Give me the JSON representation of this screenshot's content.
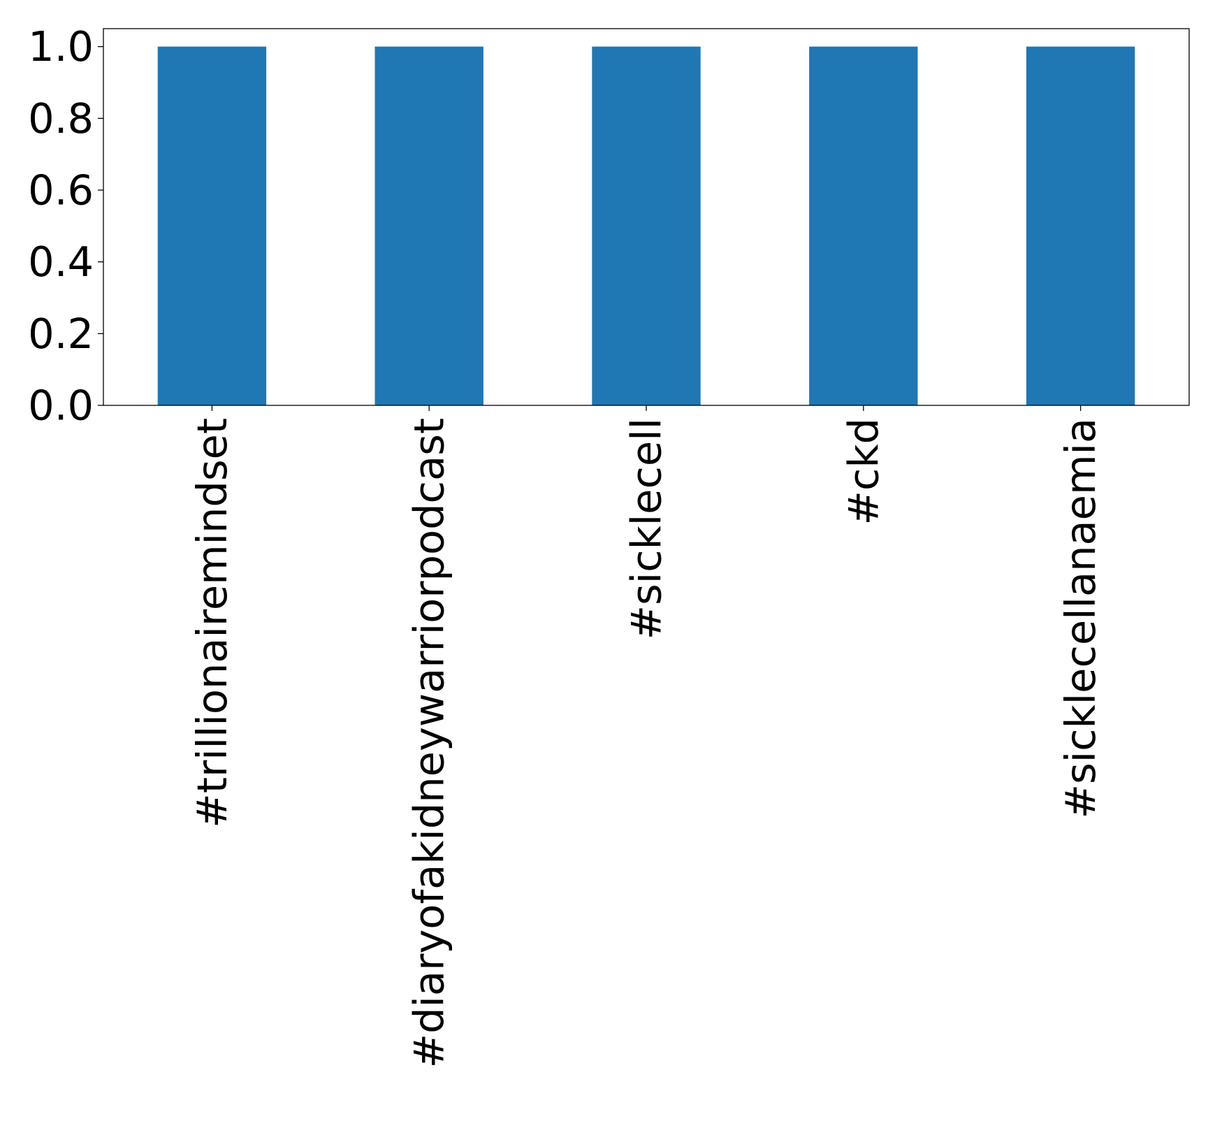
{
  "chart_data": {
    "type": "bar",
    "categories": [
      "#trillionairemindset",
      "#diaryofakidneywarriorpodcast",
      "#sicklecell",
      "#ckd",
      "#sicklecellanaemia"
    ],
    "values": [
      1.0,
      1.0,
      1.0,
      1.0,
      1.0
    ],
    "title": "",
    "xlabel": "",
    "ylabel": "",
    "ylim": [
      0,
      1.05
    ],
    "yticks": [
      0.0,
      0.2,
      0.4,
      0.6,
      0.8,
      1.0
    ],
    "ytick_labels": [
      "0.0",
      "0.2",
      "0.4",
      "0.6",
      "0.8",
      "1.0"
    ],
    "x_tick_rotation": "vertical",
    "grid": false,
    "legend": "none",
    "bar_color": "#1f77b4"
  }
}
